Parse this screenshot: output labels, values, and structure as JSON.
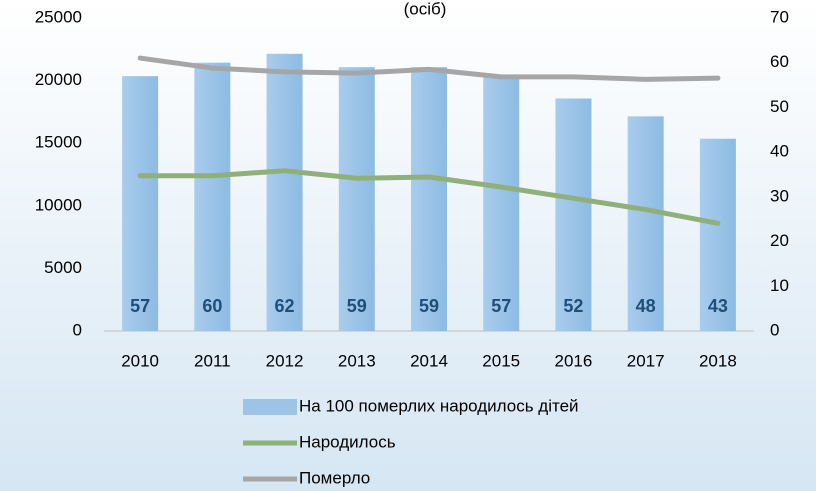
{
  "chart_data": {
    "type": "bar",
    "title": "(осіб)",
    "categories": [
      "2010",
      "2011",
      "2012",
      "2013",
      "2014",
      "2015",
      "2016",
      "2017",
      "2018"
    ],
    "series": [
      {
        "name": "На 100 померлих народилось дітей",
        "type": "bar",
        "axis": "y2",
        "color": "#9dc3e6",
        "values": [
          57,
          60,
          62,
          59,
          59,
          57,
          52,
          48,
          43
        ]
      },
      {
        "name": "Народилось",
        "type": "line",
        "color": "#8fb07a",
        "values": [
          12400,
          12400,
          12800,
          12200,
          12300,
          11500,
          10600,
          9700,
          8600
        ]
      },
      {
        "name": "Померло",
        "type": "line",
        "color": "#a6a6a6",
        "values": [
          21800,
          21000,
          20700,
          20600,
          20900,
          20300,
          20300,
          20100,
          20200
        ]
      }
    ],
    "ylim": [
      0,
      25000
    ],
    "yticks": [
      0,
      5000,
      10000,
      15000,
      20000,
      25000
    ],
    "y2lim": [
      0,
      70
    ],
    "y2ticks": [
      0,
      10,
      20,
      30,
      40,
      50,
      60,
      70
    ],
    "grid": false,
    "legend": "bottom"
  }
}
